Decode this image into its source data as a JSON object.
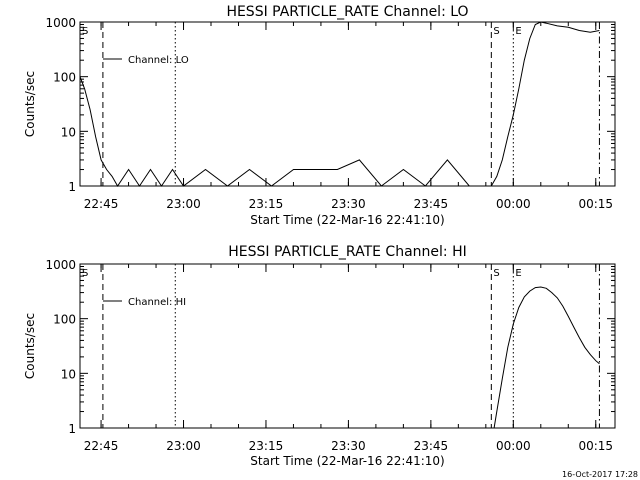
{
  "footer": {
    "timestamp": "16-Oct-2017 17:28"
  },
  "chart_data": [
    {
      "type": "line",
      "title": "HESSI PARTICLE_RATE Channel: LO",
      "xlabel": "Start Time (22-Mar-16 22:41:10)",
      "ylabel": "Counts/sec",
      "legend": "Channel: LO",
      "legend_position": "top-left",
      "y_scale": "log",
      "ylim": [
        1,
        1000
      ],
      "yticks": [
        "1",
        "10",
        "100",
        "1000"
      ],
      "xlim": [
        "22:41:10",
        "00:18:30"
      ],
      "xticks": [
        "22:45",
        "23:00",
        "23:15",
        "23:30",
        "23:45",
        "00:00",
        "00:15"
      ],
      "markers": [
        {
          "label": "S",
          "time": "22:41:10",
          "style": "dashed"
        },
        {
          "time": "22:45:20",
          "style": "dashed"
        },
        {
          "time": "22:58:30",
          "style": "dotted"
        },
        {
          "label": "S",
          "time": "23:56:00",
          "style": "dashed"
        },
        {
          "label": "E",
          "time": "00:00:00",
          "style": "dotted"
        },
        {
          "time": "00:15:40",
          "style": "dashdot"
        }
      ],
      "series": [
        {
          "name": "Channel: LO",
          "x": [
            "22:41:10",
            "22:42:00",
            "22:43:00",
            "22:44:00",
            "22:45:00",
            "22:46:00",
            "22:47:00",
            "22:48:00",
            "22:50:00",
            "22:52:00",
            "22:54:00",
            "22:56:00",
            "22:58:00",
            "23:00:00",
            "23:04:00",
            "23:08:00",
            "23:12:00",
            "23:16:00",
            "23:20:00",
            "23:24:00",
            "23:28:00",
            "23:32:00",
            "23:36:00",
            "23:40:00",
            "23:44:00",
            "23:48:00",
            "23:52:00",
            "23:56:00",
            "23:57:00",
            "23:58:00",
            "23:59:00",
            "00:00:00",
            "00:01:00",
            "00:02:00",
            "00:03:00",
            "00:04:00",
            "00:05:00",
            "00:06:00",
            "00:08:00",
            "00:10:00",
            "00:12:00",
            "00:14:00",
            "00:15:40"
          ],
          "y": [
            100,
            60,
            25,
            8,
            3,
            2,
            1.5,
            1,
            2,
            1,
            2,
            1,
            2,
            1,
            2,
            1,
            2,
            1,
            2,
            2,
            2,
            3,
            1,
            2,
            1,
            3,
            1,
            1,
            1.5,
            3,
            8,
            20,
            60,
            200,
            500,
            900,
            1000,
            950,
            850,
            800,
            700,
            650,
            700
          ]
        }
      ]
    },
    {
      "type": "line",
      "title": "HESSI PARTICLE_RATE Channel: HI",
      "xlabel": "Start Time (22-Mar-16 22:41:10)",
      "ylabel": "Counts/sec",
      "legend": "Channel: HI",
      "legend_position": "top-left",
      "y_scale": "log",
      "ylim": [
        1,
        1000
      ],
      "yticks": [
        "1",
        "10",
        "100",
        "1000"
      ],
      "xlim": [
        "22:41:10",
        "00:18:30"
      ],
      "xticks": [
        "22:45",
        "23:00",
        "23:15",
        "23:30",
        "23:45",
        "00:00",
        "00:15"
      ],
      "markers": [
        {
          "label": "S",
          "time": "22:41:10",
          "style": "dashed"
        },
        {
          "time": "22:45:20",
          "style": "dashed"
        },
        {
          "time": "22:58:30",
          "style": "dotted"
        },
        {
          "label": "S",
          "time": "23:56:00",
          "style": "dashed"
        },
        {
          "label": "E",
          "time": "00:00:00",
          "style": "dotted"
        },
        {
          "time": "00:15:40",
          "style": "dashdot"
        }
      ],
      "series": [
        {
          "name": "Channel: HI",
          "x": [
            "23:56:30",
            "23:57:00",
            "23:58:00",
            "23:59:00",
            "00:00:00",
            "00:01:00",
            "00:02:00",
            "00:03:00",
            "00:04:00",
            "00:05:00",
            "00:06:00",
            "00:07:00",
            "00:08:00",
            "00:09:00",
            "00:10:00",
            "00:11:00",
            "00:12:00",
            "00:13:00",
            "00:14:00",
            "00:15:00",
            "00:15:40"
          ],
          "y": [
            1,
            2,
            8,
            30,
            80,
            160,
            250,
            320,
            370,
            380,
            360,
            300,
            240,
            170,
            110,
            70,
            45,
            30,
            22,
            17,
            15
          ]
        }
      ]
    }
  ]
}
